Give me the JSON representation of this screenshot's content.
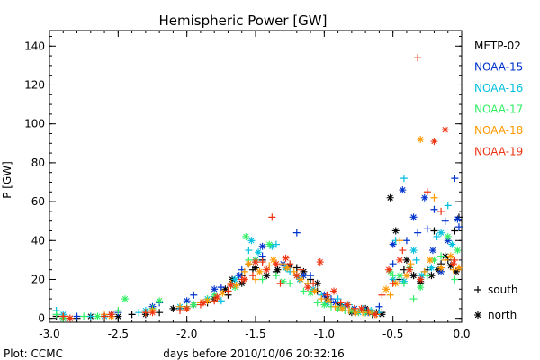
{
  "chart_data": {
    "type": "scatter",
    "title": "Hemispheric Power [GW]",
    "xlabel": "days before 2010/10/06 20:32:16",
    "ylabel": "P [GW]",
    "xlim": [
      -3.0,
      0.0
    ],
    "ylim": [
      -2,
      148
    ],
    "xticks": [
      "-3.0",
      "-2.5",
      "-2.0",
      "-1.5",
      "-1.0",
      "-0.5",
      "0.0"
    ],
    "yticks": [
      "0",
      "20",
      "40",
      "60",
      "80",
      "100",
      "120",
      "140"
    ],
    "grid": false,
    "legend_position": "right",
    "credit": "Plot: CCMC",
    "marker_key": [
      {
        "symbol": "+",
        "label": "south"
      },
      {
        "symbol": "*",
        "label": "north"
      }
    ],
    "series": [
      {
        "name": "METP-02",
        "color": "#000000",
        "south": [
          [
            -2.95,
            1
          ],
          [
            -2.8,
            0
          ],
          [
            -2.6,
            1
          ],
          [
            -2.4,
            2
          ],
          [
            -2.2,
            3
          ],
          [
            -2.05,
            5
          ],
          [
            -1.85,
            8
          ],
          [
            -1.7,
            12
          ],
          [
            -1.6,
            22
          ],
          [
            -1.55,
            28
          ],
          [
            -1.52,
            25
          ],
          [
            -1.45,
            30
          ],
          [
            -1.35,
            24
          ],
          [
            -1.3,
            27
          ],
          [
            -1.2,
            26
          ],
          [
            -1.1,
            20
          ],
          [
            -1.05,
            14
          ],
          [
            -0.95,
            8
          ],
          [
            -0.9,
            6
          ],
          [
            -0.8,
            4
          ],
          [
            -0.7,
            3
          ],
          [
            -0.65,
            2
          ],
          [
            -0.58,
            3
          ],
          [
            -0.45,
            20
          ],
          [
            -0.42,
            25
          ],
          [
            -0.35,
            22
          ],
          [
            -0.3,
            18
          ],
          [
            -0.25,
            25
          ],
          [
            -0.2,
            45
          ],
          [
            -0.15,
            28
          ],
          [
            -0.1,
            30
          ],
          [
            -0.05,
            45
          ],
          [
            -0.02,
            52
          ]
        ],
        "north": [
          [
            -2.9,
            0
          ],
          [
            -2.7,
            1
          ],
          [
            -2.5,
            1
          ],
          [
            -2.3,
            2
          ],
          [
            -2.1,
            5
          ],
          [
            -1.95,
            7
          ],
          [
            -1.8,
            10
          ],
          [
            -1.72,
            15
          ],
          [
            -1.67,
            20
          ],
          [
            -1.6,
            18
          ],
          [
            -1.5,
            26
          ],
          [
            -1.42,
            22
          ],
          [
            -1.34,
            25
          ],
          [
            -1.25,
            27
          ],
          [
            -1.15,
            24
          ],
          [
            -1.05,
            18
          ],
          [
            -0.98,
            10
          ],
          [
            -0.88,
            7
          ],
          [
            -0.8,
            3
          ],
          [
            -0.7,
            5
          ],
          [
            -0.62,
            3
          ],
          [
            -0.58,
            2
          ],
          [
            -0.52,
            62
          ],
          [
            -0.48,
            45
          ],
          [
            -0.4,
            30
          ],
          [
            -0.35,
            22
          ],
          [
            -0.3,
            19
          ],
          [
            -0.22,
            22
          ],
          [
            -0.17,
            25
          ],
          [
            -0.12,
            32
          ],
          [
            -0.08,
            27
          ],
          [
            -0.04,
            24
          ]
        ]
      },
      {
        "name": "NOAA-15",
        "color": "#0033cc",
        "south": [
          [
            -2.8,
            1
          ],
          [
            -2.5,
            3
          ],
          [
            -2.2,
            8
          ],
          [
            -1.95,
            12
          ],
          [
            -1.75,
            16
          ],
          [
            -1.6,
            25
          ],
          [
            -1.45,
            32
          ],
          [
            -1.2,
            44
          ],
          [
            -1.1,
            22
          ],
          [
            -0.95,
            10
          ],
          [
            -0.85,
            6
          ],
          [
            -0.7,
            4
          ],
          [
            -0.6,
            6
          ],
          [
            -0.5,
            28
          ],
          [
            -0.4,
            40
          ],
          [
            -0.32,
            44
          ],
          [
            -0.25,
            46
          ],
          [
            -0.2,
            56
          ],
          [
            -0.12,
            50
          ],
          [
            -0.05,
            72
          ],
          [
            -0.02,
            47
          ]
        ],
        "north": [
          [
            -2.85,
            0
          ],
          [
            -2.55,
            2
          ],
          [
            -2.25,
            6
          ],
          [
            -2.0,
            9
          ],
          [
            -1.8,
            15
          ],
          [
            -1.62,
            22
          ],
          [
            -1.5,
            30
          ],
          [
            -1.45,
            37
          ],
          [
            -1.3,
            28
          ],
          [
            -1.15,
            22
          ],
          [
            -1.0,
            12
          ],
          [
            -0.92,
            8
          ],
          [
            -0.78,
            5
          ],
          [
            -0.68,
            3
          ],
          [
            -0.5,
            38
          ],
          [
            -0.43,
            66
          ],
          [
            -0.35,
            52
          ],
          [
            -0.27,
            62
          ],
          [
            -0.21,
            35
          ],
          [
            -0.15,
            24
          ],
          [
            -0.1,
            40
          ],
          [
            -0.03,
            51
          ]
        ]
      },
      {
        "name": "NOAA-16",
        "color": "#00bfdf",
        "south": [
          [
            -2.95,
            4
          ],
          [
            -2.7,
            1
          ],
          [
            -2.35,
            3
          ],
          [
            -2.0,
            5
          ],
          [
            -1.75,
            9
          ],
          [
            -1.55,
            35
          ],
          [
            -1.35,
            38
          ],
          [
            -1.25,
            24
          ],
          [
            -1.12,
            18
          ],
          [
            -1.02,
            12
          ],
          [
            -0.9,
            10
          ],
          [
            -0.82,
            7
          ],
          [
            -0.72,
            5
          ],
          [
            -0.6,
            3
          ],
          [
            -0.48,
            40
          ],
          [
            -0.42,
            72
          ],
          [
            -0.33,
            30
          ],
          [
            -0.27,
            24
          ],
          [
            -0.18,
            42
          ],
          [
            -0.1,
            58
          ]
        ],
        "north": [
          [
            -2.9,
            2
          ],
          [
            -2.6,
            1
          ],
          [
            -2.3,
            4
          ],
          [
            -2.05,
            6
          ],
          [
            -1.85,
            10
          ],
          [
            -1.65,
            20
          ],
          [
            -1.53,
            40
          ],
          [
            -1.48,
            34
          ],
          [
            -1.38,
            37
          ],
          [
            -1.28,
            26
          ],
          [
            -1.18,
            20
          ],
          [
            -1.08,
            15
          ],
          [
            -0.98,
            8
          ],
          [
            -0.87,
            6
          ],
          [
            -0.75,
            3
          ],
          [
            -0.66,
            4
          ],
          [
            -0.5,
            20
          ],
          [
            -0.42,
            19
          ],
          [
            -0.35,
            35
          ],
          [
            -0.29,
            22
          ],
          [
            -0.22,
            26
          ],
          [
            -0.15,
            44
          ],
          [
            -0.07,
            38
          ]
        ]
      },
      {
        "name": "NOAA-17",
        "color": "#33ee66",
        "south": [
          [
            -2.95,
            2
          ],
          [
            -2.75,
            1
          ],
          [
            -2.5,
            4
          ],
          [
            -2.25,
            5
          ],
          [
            -2.0,
            6
          ],
          [
            -1.85,
            10
          ],
          [
            -1.7,
            14
          ],
          [
            -1.55,
            30
          ],
          [
            -1.45,
            20
          ],
          [
            -1.35,
            22
          ],
          [
            -1.25,
            18
          ],
          [
            -1.15,
            14
          ],
          [
            -1.05,
            8
          ],
          [
            -0.95,
            6
          ],
          [
            -0.85,
            4
          ],
          [
            -0.75,
            3
          ],
          [
            -0.65,
            3
          ],
          [
            -0.5,
            22
          ],
          [
            -0.42,
            18
          ],
          [
            -0.35,
            10
          ],
          [
            -0.25,
            22
          ],
          [
            -0.15,
            32
          ],
          [
            -0.05,
            20
          ]
        ],
        "north": [
          [
            -2.9,
            0
          ],
          [
            -2.65,
            1
          ],
          [
            -2.45,
            10
          ],
          [
            -2.2,
            9
          ],
          [
            -1.95,
            7
          ],
          [
            -1.8,
            12
          ],
          [
            -1.65,
            16
          ],
          [
            -1.57,
            42
          ],
          [
            -1.5,
            30
          ],
          [
            -1.4,
            38
          ],
          [
            -1.3,
            19
          ],
          [
            -1.2,
            22
          ],
          [
            -1.1,
            13
          ],
          [
            -1.0,
            7
          ],
          [
            -0.9,
            5
          ],
          [
            -0.8,
            4
          ],
          [
            -0.7,
            3
          ],
          [
            -0.52,
            24
          ],
          [
            -0.45,
            22
          ],
          [
            -0.38,
            26
          ],
          [
            -0.3,
            16
          ],
          [
            -0.2,
            30
          ],
          [
            -0.1,
            42
          ],
          [
            -0.03,
            35
          ]
        ]
      },
      {
        "name": "NOAA-18",
        "color": "#ff9900",
        "south": [
          [
            -2.9,
            1
          ],
          [
            -2.6,
            2
          ],
          [
            -2.3,
            3
          ],
          [
            -2.05,
            6
          ],
          [
            -1.9,
            8
          ],
          [
            -1.78,
            10
          ],
          [
            -1.68,
            18
          ],
          [
            -1.58,
            24
          ],
          [
            -1.5,
            20
          ],
          [
            -1.4,
            27
          ],
          [
            -1.3,
            28
          ],
          [
            -1.22,
            24
          ],
          [
            -1.12,
            18
          ],
          [
            -1.02,
            10
          ],
          [
            -0.92,
            6
          ],
          [
            -0.82,
            4
          ],
          [
            -0.72,
            3
          ],
          [
            -0.62,
            2
          ],
          [
            -0.52,
            12
          ],
          [
            -0.45,
            40
          ],
          [
            -0.37,
            28
          ],
          [
            -0.27,
            24
          ],
          [
            -0.2,
            62
          ],
          [
            -0.12,
            30
          ],
          [
            -0.06,
            25
          ]
        ],
        "north": [
          [
            -2.85,
            0
          ],
          [
            -2.55,
            1
          ],
          [
            -2.25,
            4
          ],
          [
            -2.0,
            5
          ],
          [
            -1.85,
            9
          ],
          [
            -1.74,
            13
          ],
          [
            -1.64,
            17
          ],
          [
            -1.55,
            28
          ],
          [
            -1.47,
            24
          ],
          [
            -1.37,
            30
          ],
          [
            -1.27,
            26
          ],
          [
            -1.17,
            20
          ],
          [
            -1.07,
            14
          ],
          [
            -0.97,
            9
          ],
          [
            -0.87,
            5
          ],
          [
            -0.77,
            3
          ],
          [
            -0.67,
            3
          ],
          [
            -0.55,
            15
          ],
          [
            -0.48,
            18
          ],
          [
            -0.4,
            22
          ],
          [
            -0.3,
            92
          ],
          [
            -0.23,
            30
          ],
          [
            -0.15,
            26
          ],
          [
            -0.08,
            32
          ],
          [
            -0.02,
            26
          ]
        ]
      },
      {
        "name": "NOAA-19",
        "color": "#ee3311",
        "south": [
          [
            -2.9,
            1
          ],
          [
            -2.6,
            1
          ],
          [
            -2.3,
            3
          ],
          [
            -2.05,
            4
          ],
          [
            -1.9,
            7
          ],
          [
            -1.8,
            9
          ],
          [
            -1.7,
            14
          ],
          [
            -1.6,
            20
          ],
          [
            -1.52,
            22
          ],
          [
            -1.45,
            29
          ],
          [
            -1.38,
            52
          ],
          [
            -1.32,
            18
          ],
          [
            -1.25,
            28
          ],
          [
            -1.17,
            25
          ],
          [
            -1.08,
            18
          ],
          [
            -0.98,
            12
          ],
          [
            -0.88,
            8
          ],
          [
            -0.78,
            5
          ],
          [
            -0.68,
            4
          ],
          [
            -0.58,
            12
          ],
          [
            -0.5,
            18
          ],
          [
            -0.43,
            35
          ],
          [
            -0.32,
            134
          ],
          [
            -0.25,
            65
          ],
          [
            -0.15,
            55
          ],
          [
            -0.05,
            30
          ]
        ],
        "north": [
          [
            -2.85,
            0
          ],
          [
            -2.55,
            2
          ],
          [
            -2.25,
            3
          ],
          [
            -2.0,
            5
          ],
          [
            -1.88,
            8
          ],
          [
            -1.78,
            11
          ],
          [
            -1.68,
            17
          ],
          [
            -1.58,
            20
          ],
          [
            -1.5,
            29
          ],
          [
            -1.42,
            25
          ],
          [
            -1.35,
            28
          ],
          [
            -1.28,
            31
          ],
          [
            -1.2,
            22
          ],
          [
            -1.12,
            16
          ],
          [
            -1.03,
            29
          ],
          [
            -0.93,
            14
          ],
          [
            -0.83,
            7
          ],
          [
            -0.73,
            5
          ],
          [
            -0.63,
            2
          ],
          [
            -0.53,
            25
          ],
          [
            -0.45,
            30
          ],
          [
            -0.38,
            25
          ],
          [
            -0.3,
            20
          ],
          [
            -0.2,
            91
          ],
          [
            -0.12,
            97
          ],
          [
            -0.06,
            28
          ]
        ]
      }
    ]
  }
}
